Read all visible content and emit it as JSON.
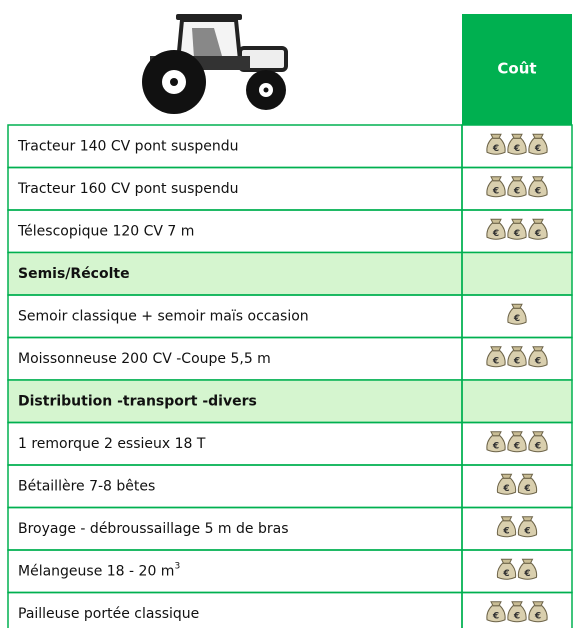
{
  "header": {
    "cost_title": "Coût"
  },
  "currency_symbol": "€",
  "table": {
    "rows": [
      {
        "label": "Tracteur 140 CV pont suspendu",
        "cost": 3
      },
      {
        "label": "Tracteur 160 CV pont suspendu",
        "cost": 3
      },
      {
        "label": "Télescopique 120 CV 7 m",
        "cost": 3
      },
      {
        "label": "Semis/Récolte",
        "section": true
      },
      {
        "label": "Semoir classique + semoir maïs occasion",
        "cost": 1
      },
      {
        "label": "Moissonneuse 200 CV -Coupe 5,5 m",
        "cost": 3
      },
      {
        "label": "Distribution -transport -divers",
        "section": true
      },
      {
        "label": "1 remorque 2 essieux 18 T",
        "cost": 3
      },
      {
        "label": "Bétaillère 7-8 bêtes",
        "cost": 2
      },
      {
        "label": "Broyage - débroussaillage 5 m de bras",
        "cost": 2
      },
      {
        "label": "Mélangeuse 18 - 20 m",
        "sup": "3",
        "cost": 2
      },
      {
        "label": "Pailleuse portée classique",
        "cost": 3
      }
    ]
  }
}
